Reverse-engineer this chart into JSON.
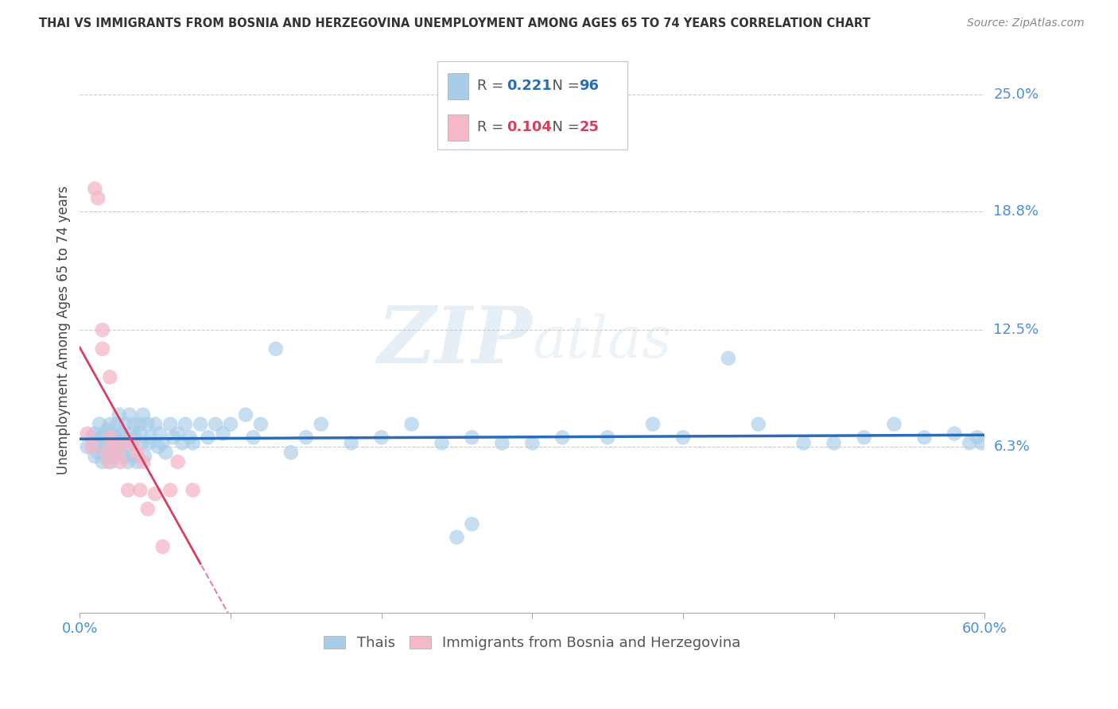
{
  "title": "THAI VS IMMIGRANTS FROM BOSNIA AND HERZEGOVINA UNEMPLOYMENT AMONG AGES 65 TO 74 YEARS CORRELATION CHART",
  "source": "Source: ZipAtlas.com",
  "ylabel": "Unemployment Among Ages 65 to 74 years",
  "ytick_labels": [
    "25.0%",
    "18.8%",
    "12.5%",
    "6.3%"
  ],
  "ytick_values": [
    0.25,
    0.188,
    0.125,
    0.063
  ],
  "xlim": [
    0.0,
    0.6
  ],
  "ylim": [
    -0.025,
    0.275
  ],
  "watermark": "ZIPatlas",
  "legend_blue_r": "0.221",
  "legend_blue_n": "96",
  "legend_pink_r": "0.104",
  "legend_pink_n": "25",
  "color_blue": "#a8cde8",
  "color_pink": "#f4b8c8",
  "color_blue_line": "#2b6cb8",
  "color_pink_line": "#d44060",
  "color_pink_dashed": "#e08898",
  "color_axis_labels": "#4a90d9",
  "blue_scatter_x": [
    0.005,
    0.008,
    0.01,
    0.01,
    0.01,
    0.012,
    0.013,
    0.015,
    0.015,
    0.015,
    0.016,
    0.017,
    0.018,
    0.018,
    0.019,
    0.02,
    0.02,
    0.02,
    0.021,
    0.022,
    0.022,
    0.023,
    0.024,
    0.025,
    0.025,
    0.026,
    0.027,
    0.028,
    0.029,
    0.03,
    0.03,
    0.031,
    0.032,
    0.033,
    0.034,
    0.035,
    0.035,
    0.036,
    0.037,
    0.038,
    0.04,
    0.04,
    0.041,
    0.042,
    0.043,
    0.045,
    0.046,
    0.047,
    0.05,
    0.052,
    0.053,
    0.055,
    0.057,
    0.06,
    0.062,
    0.065,
    0.068,
    0.07,
    0.073,
    0.075,
    0.08,
    0.085,
    0.09,
    0.095,
    0.1,
    0.11,
    0.115,
    0.12,
    0.13,
    0.14,
    0.15,
    0.16,
    0.18,
    0.2,
    0.22,
    0.24,
    0.26,
    0.28,
    0.3,
    0.32,
    0.35,
    0.38,
    0.4,
    0.43,
    0.45,
    0.48,
    0.5,
    0.52,
    0.54,
    0.56,
    0.58,
    0.59,
    0.595,
    0.598,
    0.25,
    0.26
  ],
  "blue_scatter_y": [
    0.063,
    0.068,
    0.07,
    0.058,
    0.065,
    0.06,
    0.075,
    0.063,
    0.068,
    0.055,
    0.07,
    0.065,
    0.058,
    0.072,
    0.06,
    0.075,
    0.068,
    0.063,
    0.055,
    0.07,
    0.058,
    0.065,
    0.068,
    0.075,
    0.06,
    0.08,
    0.07,
    0.065,
    0.058,
    0.075,
    0.068,
    0.063,
    0.055,
    0.08,
    0.07,
    0.065,
    0.058,
    0.075,
    0.068,
    0.055,
    0.075,
    0.07,
    0.065,
    0.08,
    0.058,
    0.075,
    0.065,
    0.068,
    0.075,
    0.063,
    0.07,
    0.065,
    0.06,
    0.075,
    0.068,
    0.07,
    0.065,
    0.075,
    0.068,
    0.065,
    0.075,
    0.068,
    0.075,
    0.07,
    0.075,
    0.08,
    0.068,
    0.075,
    0.115,
    0.06,
    0.068,
    0.075,
    0.065,
    0.068,
    0.075,
    0.065,
    0.068,
    0.065,
    0.065,
    0.068,
    0.068,
    0.075,
    0.068,
    0.11,
    0.075,
    0.065,
    0.065,
    0.068,
    0.075,
    0.068,
    0.07,
    0.065,
    0.068,
    0.065,
    0.015,
    0.022
  ],
  "pink_scatter_x": [
    0.005,
    0.008,
    0.01,
    0.012,
    0.015,
    0.015,
    0.018,
    0.019,
    0.02,
    0.02,
    0.022,
    0.025,
    0.027,
    0.03,
    0.032,
    0.035,
    0.038,
    0.04,
    0.042,
    0.045,
    0.05,
    0.055,
    0.06,
    0.065,
    0.075
  ],
  "pink_scatter_y": [
    0.07,
    0.063,
    0.2,
    0.195,
    0.125,
    0.115,
    0.06,
    0.055,
    0.1,
    0.068,
    0.065,
    0.06,
    0.055,
    0.065,
    0.04,
    0.065,
    0.06,
    0.04,
    0.055,
    0.03,
    0.038,
    0.01,
    0.04,
    0.055,
    0.04
  ]
}
